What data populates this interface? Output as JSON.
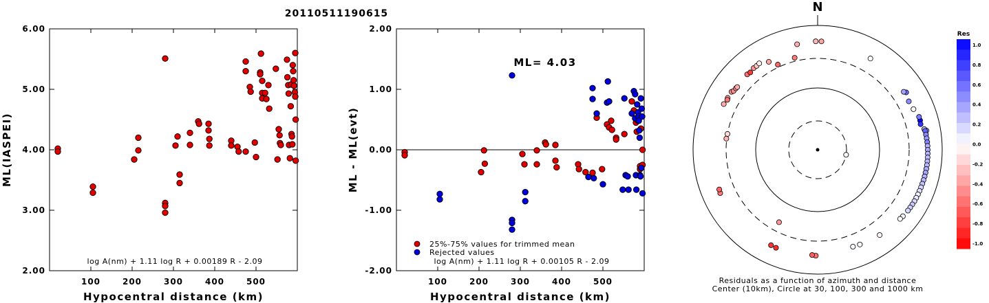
{
  "title": "20110511190615",
  "chart_data": [
    {
      "type": "scatter",
      "id": "left",
      "xlabel": "Hypocentral distance (km)",
      "ylabel": "ML(IASPEI)",
      "xlim": [
        0,
        600
      ],
      "ylim": [
        2.0,
        6.0
      ],
      "xticks": [
        "100",
        "200",
        "300",
        "400",
        "500"
      ],
      "yticks": [
        "2.00",
        "3.00",
        "4.00",
        "5.00",
        "6.00"
      ],
      "formula": "log A(nm) + 1.11 log R + 0.00189 R - 2.09",
      "color": "#e00000",
      "points": [
        [
          20,
          4.02
        ],
        [
          20,
          3.97
        ],
        [
          105,
          3.39
        ],
        [
          105,
          3.29
        ],
        [
          205,
          3.84
        ],
        [
          215,
          4.2
        ],
        [
          215,
          3.99
        ],
        [
          280,
          5.51
        ],
        [
          280,
          3.12
        ],
        [
          280,
          3.07
        ],
        [
          280,
          2.96
        ],
        [
          305,
          4.07
        ],
        [
          310,
          4.22
        ],
        [
          315,
          3.59
        ],
        [
          315,
          3.45
        ],
        [
          340,
          4.28
        ],
        [
          340,
          4.08
        ],
        [
          360,
          4.47
        ],
        [
          362,
          4.43
        ],
        [
          385,
          4.43
        ],
        [
          385,
          4.32
        ],
        [
          387,
          4.18
        ],
        [
          387,
          4.07
        ],
        [
          440,
          4.15
        ],
        [
          440,
          4.07
        ],
        [
          455,
          4.05
        ],
        [
          458,
          3.97
        ],
        [
          475,
          5.46
        ],
        [
          475,
          5.3
        ],
        [
          475,
          3.97
        ],
        [
          485,
          5.04
        ],
        [
          487,
          4.96
        ],
        [
          497,
          4.12
        ],
        [
          500,
          3.88
        ],
        [
          510,
          5.28
        ],
        [
          510,
          5.25
        ],
        [
          512,
          5.59
        ],
        [
          515,
          5.14
        ],
        [
          515,
          4.94
        ],
        [
          515,
          4.85
        ],
        [
          522,
          4.94
        ],
        [
          525,
          4.84
        ],
        [
          530,
          5.07
        ],
        [
          532,
          4.68
        ],
        [
          548,
          5.34
        ],
        [
          552,
          3.84
        ],
        [
          555,
          4.34
        ],
        [
          557,
          4.24
        ],
        [
          558,
          4.11
        ],
        [
          560,
          4.08
        ],
        [
          575,
          5.49
        ],
        [
          576,
          5.2
        ],
        [
          578,
          5.07
        ],
        [
          579,
          4.93
        ],
        [
          580,
          4.08
        ],
        [
          582,
          3.86
        ],
        [
          584,
          4.72
        ],
        [
          585,
          5.08
        ],
        [
          586,
          4.26
        ],
        [
          587,
          4.22
        ],
        [
          588,
          4.09
        ],
        [
          589,
          5.4
        ],
        [
          590,
          5.3
        ],
        [
          591,
          5.15
        ],
        [
          592,
          5.06
        ],
        [
          594,
          4.95
        ],
        [
          595,
          5.6
        ],
        [
          595,
          4.88
        ],
        [
          596,
          4.5
        ],
        [
          596,
          3.82
        ]
      ]
    },
    {
      "type": "scatter",
      "id": "middle",
      "xlabel": "Hypocentral distance (km)",
      "ylabel": "ML - ML(evt)",
      "xlim": [
        0,
        600
      ],
      "ylim": [
        -2.0,
        2.0
      ],
      "xticks": [
        "100",
        "200",
        "300",
        "400",
        "500"
      ],
      "yticks": [
        "-2.00",
        "-1.00",
        "0.00",
        "1.00",
        "2.00"
      ],
      "annotation": "ML= 4.03",
      "formula": "log A(nm) + 1.11 log R + 0.00105 R - 2.09",
      "legend": [
        {
          "label": "25%-75% values for trimmed mean",
          "color": "#e00000"
        },
        {
          "label": "Rejected values",
          "color": "#0000dd"
        }
      ],
      "accepted": [
        [
          20,
          -0.04
        ],
        [
          20,
          -0.09
        ],
        [
          205,
          -0.37
        ],
        [
          212,
          -0.01
        ],
        [
          214,
          -0.23
        ],
        [
          305,
          -0.07
        ],
        [
          310,
          -0.24
        ],
        [
          340,
          -0.01
        ],
        [
          340,
          -0.24
        ],
        [
          360,
          0.12
        ],
        [
          362,
          0.09
        ],
        [
          385,
          0.08
        ],
        [
          385,
          -0.18
        ],
        [
          388,
          -0.29
        ],
        [
          440,
          -0.24
        ],
        [
          442,
          -0.32
        ],
        [
          458,
          -0.37
        ],
        [
          475,
          -0.38
        ],
        [
          485,
          0.53
        ],
        [
          498,
          -0.32
        ],
        [
          510,
          0.42
        ],
        [
          515,
          0.37
        ],
        [
          520,
          0.48
        ],
        [
          522,
          0.33
        ],
        [
          532,
          0.2
        ],
        [
          532,
          0.17
        ],
        [
          552,
          0.26
        ],
        [
          570,
          0.8
        ],
        [
          575,
          0.65
        ],
        [
          580,
          0.45
        ],
        [
          582,
          0.3
        ],
        [
          585,
          0.48
        ],
        [
          590,
          -0.27
        ],
        [
          590,
          -0.32
        ],
        [
          592,
          0.35
        ],
        [
          596,
          0.0
        ],
        [
          596,
          -0.25
        ]
      ],
      "rejected": [
        [
          105,
          -0.73
        ],
        [
          105,
          -0.82
        ],
        [
          280,
          1.23
        ],
        [
          280,
          -1.16
        ],
        [
          280,
          -1.21
        ],
        [
          280,
          -1.32
        ],
        [
          312,
          -0.7
        ],
        [
          312,
          -0.85
        ],
        [
          465,
          -0.45
        ],
        [
          475,
          1.02
        ],
        [
          475,
          0.84
        ],
        [
          478,
          -0.47
        ],
        [
          485,
          0.6
        ],
        [
          500,
          -0.57
        ],
        [
          510,
          0.78
        ],
        [
          512,
          1.13
        ],
        [
          515,
          0.8
        ],
        [
          548,
          -0.66
        ],
        [
          552,
          0.85
        ],
        [
          555,
          -0.42
        ],
        [
          560,
          -0.44
        ],
        [
          562,
          -0.66
        ],
        [
          570,
          0.6
        ],
        [
          575,
          0.97
        ],
        [
          578,
          0.92
        ],
        [
          578,
          0.52
        ],
        [
          580,
          -0.42
        ],
        [
          581,
          -0.66
        ],
        [
          583,
          0.75
        ],
        [
          585,
          0.62
        ],
        [
          586,
          0.55
        ],
        [
          587,
          0.48
        ],
        [
          588,
          0.32
        ],
        [
          589,
          0.2
        ],
        [
          590,
          -0.42
        ],
        [
          591,
          -0.44
        ],
        [
          592,
          0.85
        ],
        [
          593,
          -0.3
        ],
        [
          594,
          0.68
        ],
        [
          595,
          0.55
        ],
        [
          596,
          -0.72
        ]
      ]
    },
    {
      "type": "scatter",
      "id": "polar",
      "subtype": "polar",
      "north_label": "N",
      "caption1": "Residuals as a function of azimuth and distance",
      "caption2": "Center (10km), Circle at 30, 100, 300 and 1000 km",
      "colorbar_title": "Res",
      "colorbar_ticks": [
        "1.0",
        "0.8",
        "0.6",
        "0.4",
        "0.2",
        "0.0",
        "-0.2",
        "-0.4",
        "-0.6",
        "-0.8",
        "-1.0"
      ],
      "rings_km": [
        30,
        100,
        300,
        1000
      ],
      "points": [
        [
          67,
          -0.02
        ],
        [
          80,
          0.35
        ],
        [
          57,
          0.58
        ],
        [
          56,
          0.36
        ],
        [
          62,
          0.45
        ],
        [
          74,
          0.98
        ],
        [
          76,
          0.8
        ],
        [
          72,
          0.52
        ],
        [
          79,
          0.28
        ],
        [
          80,
          0.6
        ],
        [
          82,
          0.46
        ],
        [
          84,
          0.4
        ],
        [
          86,
          0.48
        ],
        [
          88,
          0.3
        ],
        [
          90,
          0.33
        ],
        [
          92,
          0.3
        ],
        [
          94,
          0.26
        ],
        [
          96,
          0.28
        ],
        [
          98,
          0.28
        ],
        [
          100,
          0.32
        ],
        [
          102,
          0.34
        ],
        [
          104,
          0.3
        ],
        [
          106,
          0.28
        ],
        [
          108,
          0.24
        ],
        [
          110,
          0.16
        ],
        [
          112,
          0.12
        ],
        [
          114,
          0.06
        ],
        [
          116,
          0.08
        ],
        [
          118,
          0.14
        ],
        [
          120,
          0.22
        ],
        [
          122,
          0.18
        ],
        [
          124,
          0.15
        ],
        [
          128,
          0.05
        ],
        [
          130,
          -0.02
        ],
        [
          144,
          -0.05
        ],
        [
          156,
          0.02
        ],
        [
          160,
          0.03
        ],
        [
          181,
          -0.55
        ],
        [
          183,
          -0.62
        ],
        [
          203,
          -0.82
        ],
        [
          206,
          -0.78
        ],
        [
          208,
          -0.4
        ],
        [
          246,
          -0.52
        ],
        [
          248,
          -0.6
        ],
        [
          277,
          -0.3
        ],
        [
          280,
          -0.14
        ],
        [
          296,
          -0.32
        ],
        [
          300,
          -0.36
        ],
        [
          299,
          -0.54
        ],
        [
          304,
          -0.4
        ],
        [
          305,
          -0.46
        ],
        [
          307,
          -0.4
        ],
        [
          308,
          -0.32
        ],
        [
          317,
          -0.55
        ],
        [
          319,
          -0.78
        ],
        [
          322,
          -0.42
        ],
        [
          324,
          -0.22
        ],
        [
          326,
          -0.06
        ],
        [
          331,
          -0.36
        ],
        [
          335,
          -0.6
        ],
        [
          346,
          -0.52
        ],
        [
          349,
          -0.32
        ],
        [
          359,
          -0.28
        ],
        [
          362,
          -0.36
        ],
        [
          100,
          0.02
        ],
        [
          30,
          -0.01
        ]
      ]
    }
  ]
}
